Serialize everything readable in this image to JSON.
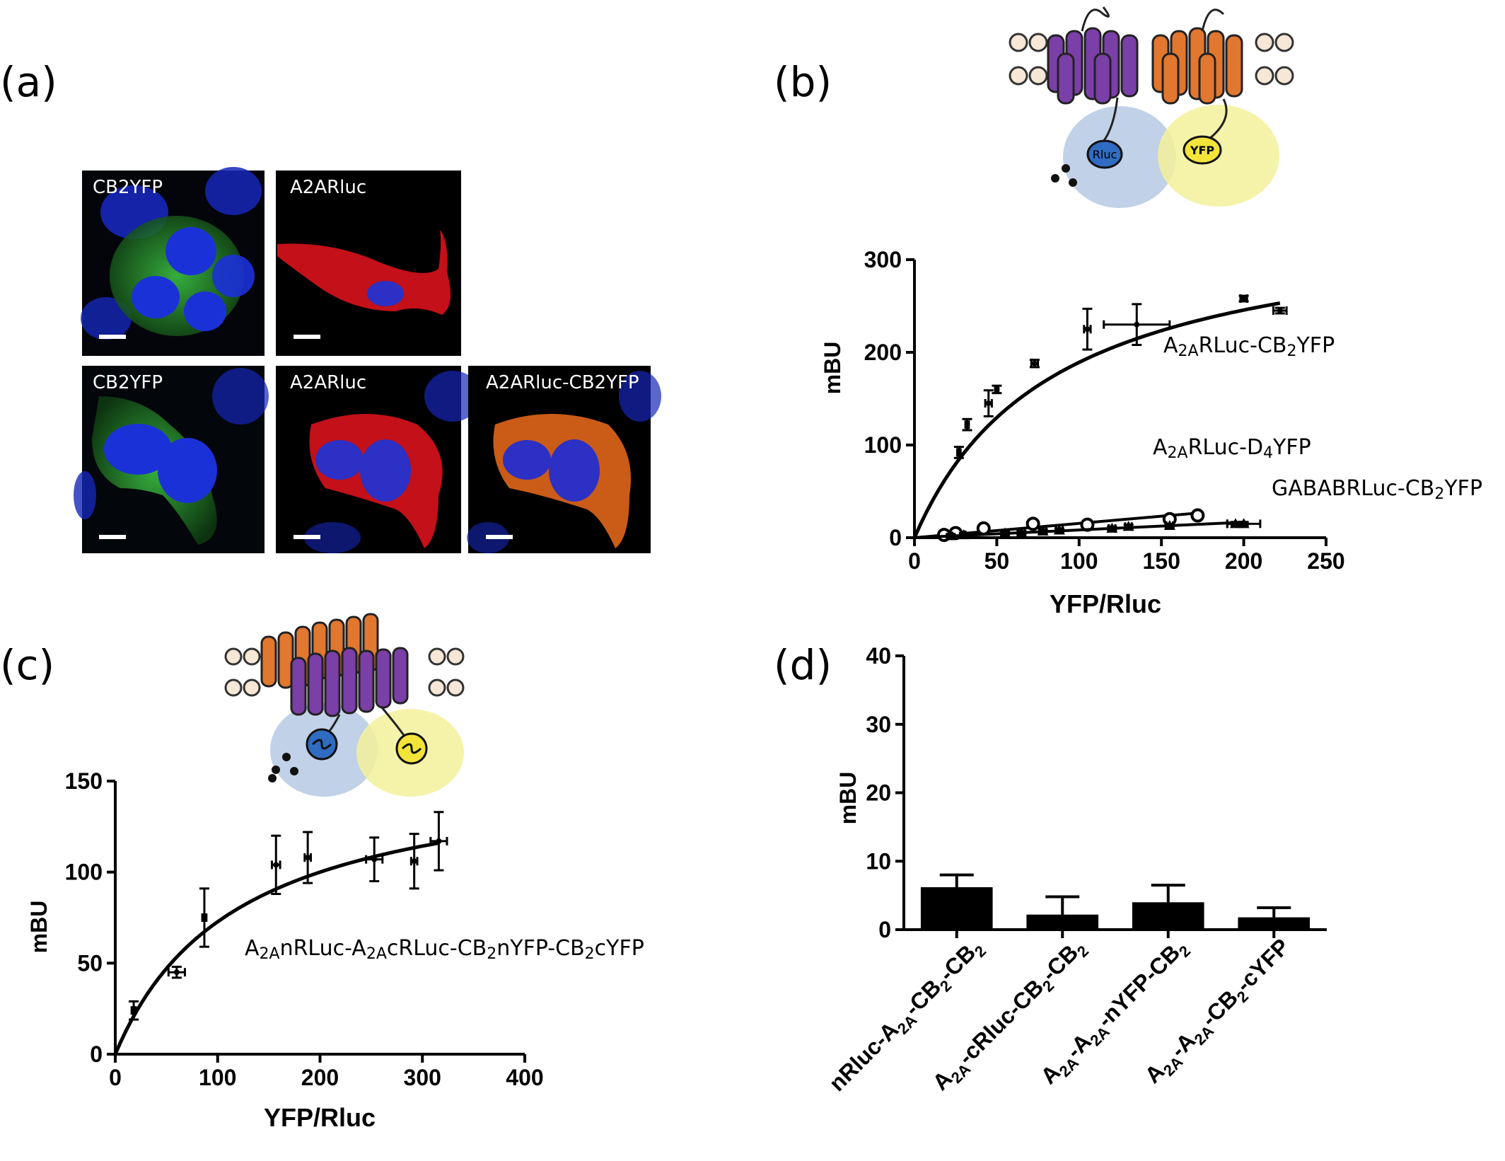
{
  "panels": {
    "a": {
      "label": "(a)"
    },
    "b": {
      "label": "(b)"
    },
    "c": {
      "label": "(c)"
    },
    "d": {
      "label": "(d)"
    }
  },
  "micrographs": [
    {
      "label": "CB2YFP",
      "colors": [
        "#0b2bd6",
        "#2cb13a"
      ]
    },
    {
      "label": "A2ARluc",
      "colors": [
        "#e0101e",
        "#2b2fc8"
      ]
    },
    {
      "label": "CB2YFP",
      "colors": [
        "#0b2bd6",
        "#2cb13a"
      ]
    },
    {
      "label": "A2ARluc",
      "colors": [
        "#e0101e",
        "#2b2fc8"
      ]
    },
    {
      "label": "A2ARluc-CB2YFP",
      "colors": [
        "#e06a10",
        "#2b2fc8"
      ]
    }
  ],
  "schematic_b": {
    "donor_label": "Rluc",
    "acceptor_label": "YFP"
  },
  "colors": {
    "donor_receptor": "#7b3fa8",
    "acceptor_receptor": "#e2772f",
    "donor_halo": "#b9cce6",
    "acceptor_halo": "#f3f19a",
    "donor_tag": "#2f6cc2",
    "acceptor_tag": "#f2e43a"
  },
  "chart_data": [
    {
      "panel": "b",
      "type": "scatter",
      "xlabel": "YFP/Rluc",
      "ylabel": "mBU",
      "xlim": [
        0,
        250
      ],
      "ylim": [
        0,
        300
      ],
      "xticks": [
        0,
        50,
        100,
        150,
        200,
        250
      ],
      "yticks": [
        0,
        100,
        200,
        300
      ],
      "series": [
        {
          "name": "A2ARLuc-CB2YFP",
          "marker": "point",
          "x": [
            27,
            32,
            45,
            50,
            73,
            105,
            135,
            200,
            222
          ],
          "y": [
            92,
            122,
            145,
            160,
            188,
            225,
            230,
            258,
            245
          ],
          "xerr": [
            1,
            1,
            2,
            1,
            2,
            2,
            20,
            2,
            4
          ],
          "yerr": [
            6,
            6,
            14,
            4,
            4,
            22,
            22,
            3,
            3
          ],
          "fit": {
            "bmax": 350,
            "kd": 85
          }
        },
        {
          "name": "A2ARLuc-D4YFP",
          "marker": "circle",
          "x": [
            18,
            25,
            42,
            72,
            105,
            155,
            172
          ],
          "y": [
            3,
            5,
            10,
            15,
            14,
            20,
            24
          ],
          "xerr": [
            1,
            2,
            2,
            2,
            2,
            2,
            2
          ],
          "yerr": [
            2,
            2,
            4,
            3,
            3,
            3,
            3
          ]
        },
        {
          "name": "GABABRLuc-CB2YFP",
          "marker": "triangle",
          "x": [
            22,
            30,
            55,
            65,
            78,
            88,
            120,
            130,
            155,
            195,
            200
          ],
          "y": [
            2,
            3,
            5,
            5,
            7,
            8,
            10,
            12,
            13,
            15,
            15
          ],
          "xerr": [
            1,
            1,
            2,
            2,
            2,
            2,
            2,
            2,
            2,
            5,
            10
          ],
          "yerr": [
            2,
            2,
            2,
            2,
            2,
            2,
            2,
            2,
            2,
            2,
            2
          ]
        }
      ]
    },
    {
      "panel": "c",
      "type": "scatter",
      "xlabel": "YFP/Rluc",
      "ylabel": "mBU",
      "xlim": [
        0,
        400
      ],
      "ylim": [
        0,
        150
      ],
      "xticks": [
        0,
        100,
        200,
        300,
        400
      ],
      "yticks": [
        0,
        50,
        100,
        150
      ],
      "series": [
        {
          "name": "A2AnRLuc-A2AcRLuc-CB2nYFP-CB2cYFP",
          "marker": "point",
          "x": [
            18,
            60,
            87,
            157,
            188,
            253,
            292,
            316
          ],
          "y": [
            24,
            45,
            75,
            104,
            108,
            107,
            106,
            117
          ],
          "xerr": [
            2,
            8,
            2,
            4,
            3,
            8,
            3,
            8
          ],
          "yerr": [
            5,
            3,
            16,
            16,
            14,
            12,
            15,
            16
          ],
          "fit": {
            "bmax": 160,
            "kd": 120
          }
        }
      ]
    },
    {
      "panel": "d",
      "type": "bar",
      "ylabel": "mBU",
      "ylim": [
        0,
        40
      ],
      "yticks": [
        0,
        10,
        20,
        30,
        40
      ],
      "categories": [
        "nRluc-A2A-CB2-CB2",
        "A2A-cRluc-CB2-CB2",
        "A2A-A2A-nYFP-CB2",
        "A2A-A2A-CB2-cYFP"
      ],
      "values": [
        6.2,
        2.2,
        4.0,
        1.8
      ],
      "errors": [
        1.8,
        2.6,
        2.5,
        1.4
      ]
    }
  ]
}
